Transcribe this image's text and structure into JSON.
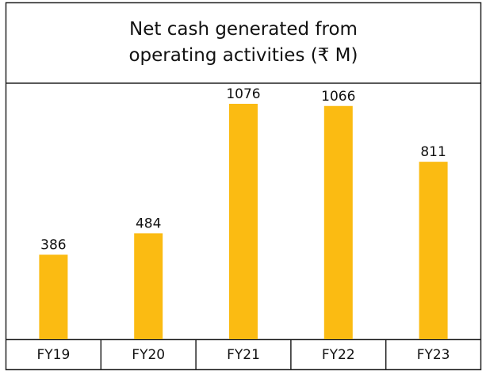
{
  "chart_data": {
    "type": "bar",
    "title": "Net cash generated from operating activities (₹ M)",
    "categories": [
      "FY19",
      "FY20",
      "FY21",
      "FY22",
      "FY23"
    ],
    "values": [
      386,
      484,
      1076,
      1066,
      811
    ],
    "color": "#fbbb12"
  }
}
